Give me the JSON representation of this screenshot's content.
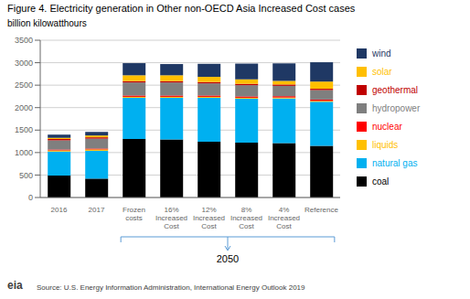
{
  "chart_data": {
    "type": "bar",
    "stacked": true,
    "title": "Figure 4. Electricity generation in Other non-OECD Asia Increased Cost cases",
    "ylabel": "billion kilowatthours",
    "categories": [
      "2016",
      "2017",
      "Frozen\ncosts",
      "16%\nIncreased\nCost",
      "12%\nIncreased\nCost",
      "8%\nIncreased\nCost",
      "4%\nIncreased\nCost",
      "Reference"
    ],
    "series": [
      {
        "name": "coal",
        "color": "#000000",
        "values": [
          490,
          420,
          1300,
          1290,
          1240,
          1220,
          1210,
          1150
        ]
      },
      {
        "name": "natural gas",
        "color": "#00b0f0",
        "values": [
          530,
          620,
          920,
          930,
          980,
          980,
          995,
          980
        ]
      },
      {
        "name": "liquids",
        "color": "#ffc000",
        "values": [
          30,
          30,
          20,
          20,
          20,
          20,
          20,
          20
        ]
      },
      {
        "name": "nuclear",
        "color": "#ff0000",
        "values": [
          20,
          20,
          30,
          30,
          30,
          30,
          30,
          30
        ]
      },
      {
        "name": "hydropower",
        "color": "#7f7f7f",
        "values": [
          200,
          220,
          290,
          290,
          270,
          250,
          230,
          210
        ]
      },
      {
        "name": "geothermal",
        "color": "#c00000",
        "values": [
          30,
          30,
          30,
          30,
          30,
          30,
          30,
          30
        ]
      },
      {
        "name": "solar",
        "color": "#ffbf00",
        "values": [
          30,
          40,
          130,
          130,
          115,
          100,
          80,
          160
        ]
      },
      {
        "name": "wind",
        "color": "#1f3864",
        "values": [
          70,
          80,
          270,
          250,
          290,
          350,
          390,
          430
        ]
      }
    ],
    "ylim": [
      0,
      3500
    ],
    "yticks": [
      0,
      500,
      1000,
      1500,
      2000,
      2500,
      3000,
      3500
    ],
    "grid": true,
    "legend": "right",
    "annotations": [
      "2050",
      "Source: U.S. Energy Information Administration, International Energy Outlook 2019",
      "eia"
    ]
  }
}
